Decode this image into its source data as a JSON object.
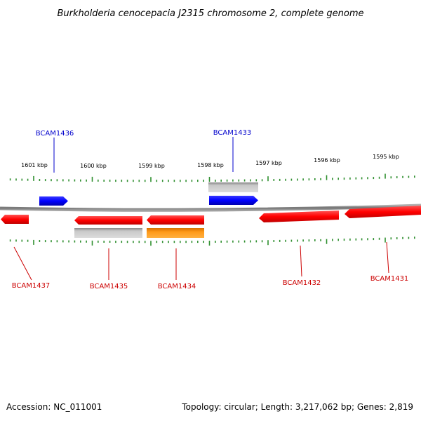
{
  "title": "Burkholderia cenocepacia J2315 chromosome 2, complete genome",
  "footer": {
    "accession": "Accession: NC_011001",
    "summary": "Topology: circular; Length: 3,217,062 bp; Genes: 2,819"
  },
  "colors": {
    "backbone": "#8c8c8c",
    "tick": "#2f8f2f",
    "forward_gene": "#0000ff",
    "reverse_gene": "#ff0000",
    "grey_feature": "#c0c0c0",
    "orange_feature": "#ff8c00",
    "label_blue": "#0000cc",
    "label_red": "#cc0000"
  },
  "scale": {
    "unit": "kbp",
    "ticks": [
      {
        "label": "1601 kbp"
      },
      {
        "label": "1600 kbp"
      },
      {
        "label": "1599 kbp"
      },
      {
        "label": "1598 kbp"
      },
      {
        "label": "1597 kbp"
      },
      {
        "label": "1596 kbp"
      },
      {
        "label": "1595 kbp"
      }
    ]
  },
  "genes": [
    {
      "name": "BCAM1436",
      "strand": "forward",
      "color": "blue"
    },
    {
      "name": "BCAM1433",
      "strand": "forward",
      "color": "blue"
    },
    {
      "name": "BCAM1437",
      "strand": "reverse",
      "color": "red"
    },
    {
      "name": "BCAM1435",
      "strand": "reverse",
      "color": "red"
    },
    {
      "name": "BCAM1434",
      "strand": "reverse",
      "color": "red"
    },
    {
      "name": "BCAM1432",
      "strand": "reverse",
      "color": "red"
    },
    {
      "name": "BCAM1431",
      "strand": "reverse",
      "color": "red"
    }
  ]
}
